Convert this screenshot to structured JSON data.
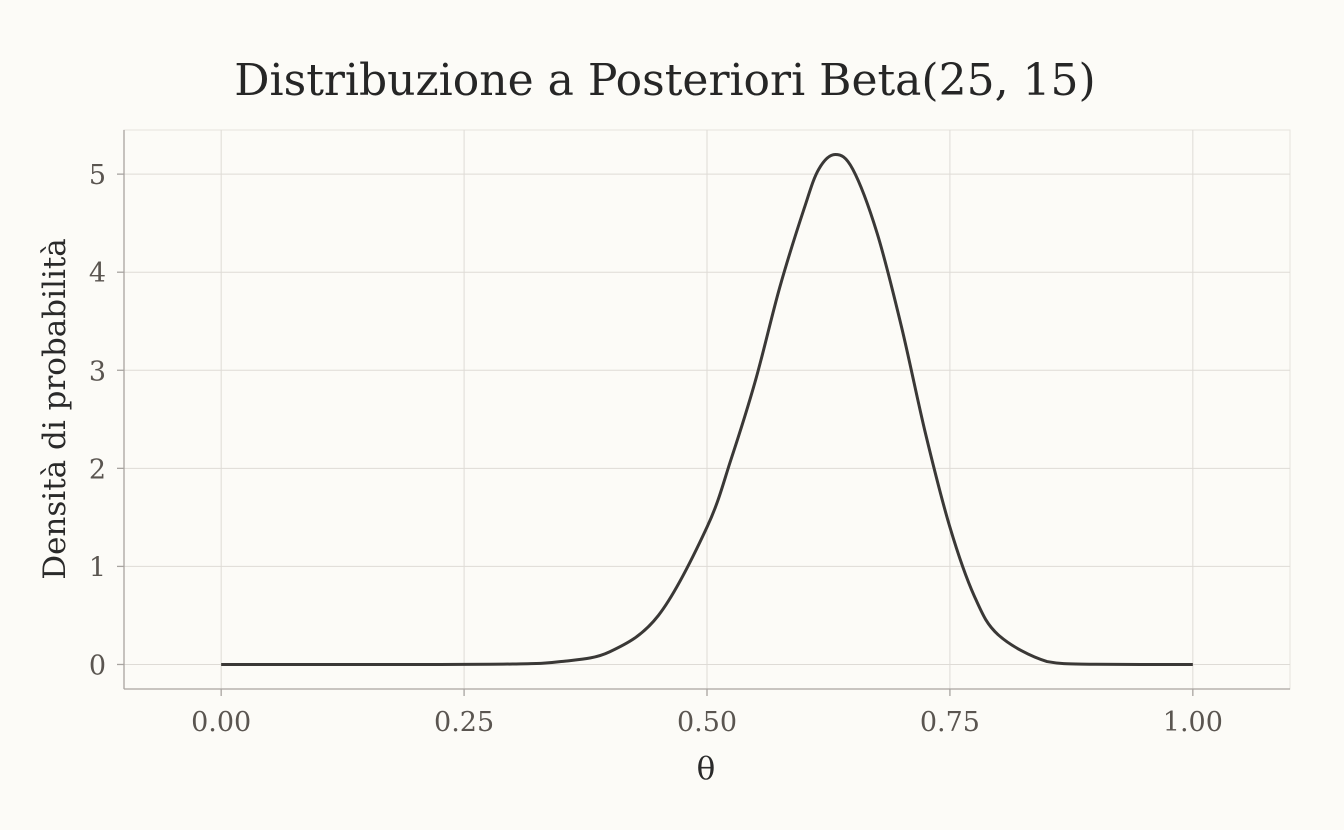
{
  "chart_data": {
    "type": "line",
    "title": "Distribuzione a Posteriori Beta(25, 15)",
    "xlabel": "θ",
    "ylabel": "Densità di probabilità",
    "xlim": [
      -0.1,
      1.1
    ],
    "ylim": [
      -0.25,
      5.45
    ],
    "x_ticks": [
      0.0,
      0.25,
      0.5,
      0.75,
      1.0
    ],
    "x_tick_labels": [
      "0.00",
      "0.25",
      "0.50",
      "0.75",
      "1.00"
    ],
    "y_ticks": [
      0,
      1,
      2,
      3,
      4,
      5
    ],
    "y_tick_labels": [
      "0",
      "1",
      "2",
      "3",
      "4",
      "5"
    ],
    "grid": true,
    "series": [
      {
        "color": "#3a3836",
        "x": [
          0.0,
          0.2,
          0.3,
          0.35,
          0.4,
          0.45,
          0.5,
          0.525,
          0.55,
          0.575,
          0.6,
          0.615,
          0.632,
          0.65,
          0.675,
          0.7,
          0.725,
          0.75,
          0.775,
          0.8,
          0.85,
          0.9,
          1.0
        ],
        "y": [
          0.0,
          0.0,
          0.005,
          0.03,
          0.13,
          0.5,
          1.4,
          2.1,
          2.9,
          3.85,
          4.65,
          5.05,
          5.2,
          5.05,
          4.4,
          3.45,
          2.35,
          1.4,
          0.7,
          0.3,
          0.03,
          0.002,
          0.0
        ]
      }
    ]
  }
}
